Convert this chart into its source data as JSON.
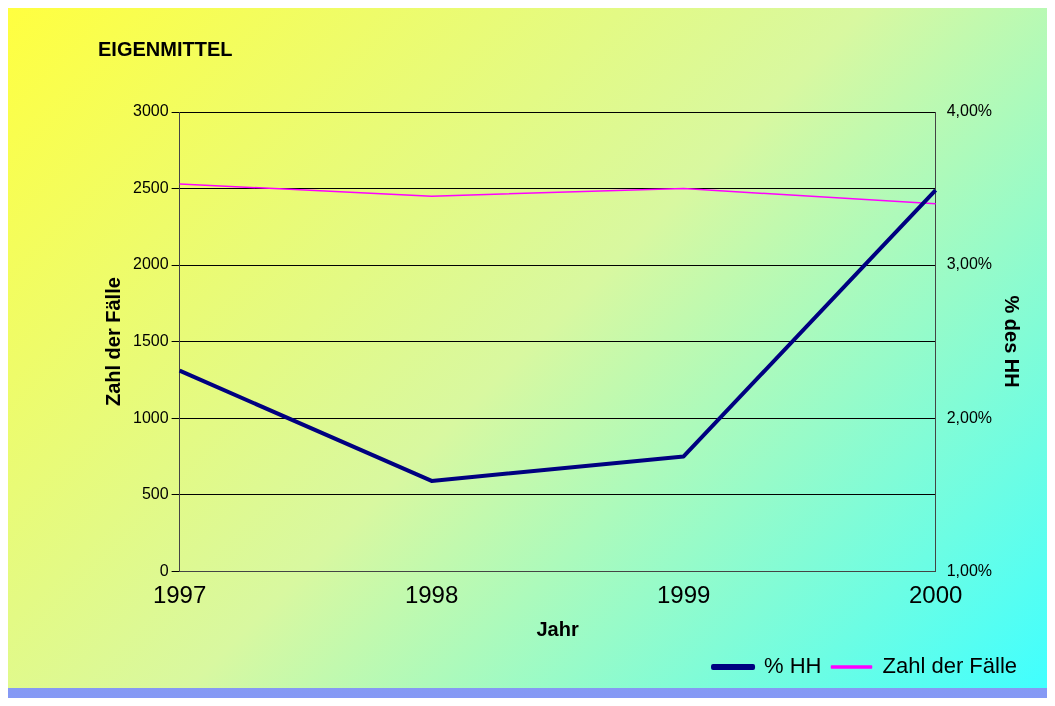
{
  "chart_data": {
    "type": "line",
    "title": "EIGENMITTEL",
    "xlabel": "Jahr",
    "ylabel": "Zahl der Fälle",
    "y2label": "% des HH",
    "categories": [
      "1997",
      "1998",
      "1999",
      "2000"
    ],
    "series": [
      {
        "name": "% HH",
        "color": "#000080",
        "values": [
          2.31,
          1.59,
          1.75,
          3.49
        ],
        "axis": "y2"
      },
      {
        "name": "Zahl der Fälle",
        "color": "#ff00ff",
        "values": [
          2530,
          2450,
          2500,
          2400
        ]
      }
    ],
    "ylim": [
      0,
      3000
    ],
    "yticks": [
      0,
      500,
      1000,
      1500,
      2000,
      2500,
      3000
    ],
    "y2lim": [
      1,
      4
    ],
    "y2ticks": [
      {
        "value": 1,
        "label": "1,00%"
      },
      {
        "value": 2,
        "label": "2,00%"
      },
      {
        "value": 3,
        "label": "3,00%"
      },
      {
        "value": 4,
        "label": "4,00%"
      }
    ],
    "grid": "y",
    "legend": "bottom right",
    "marker": "none",
    "line_style": "solid"
  }
}
